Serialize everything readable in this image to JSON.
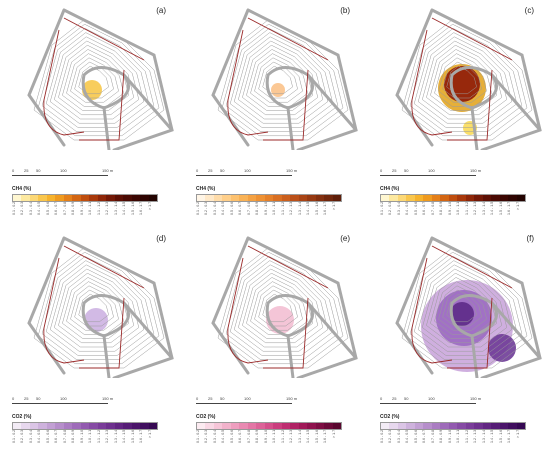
{
  "panels": [
    {
      "label": "(a)",
      "legend_title": "CH4 (%)",
      "colors": [
        "#fff7d1",
        "#fde9a0",
        "#fcd876",
        "#f9c64c",
        "#f6b22c",
        "#ef9a1e",
        "#e47f18",
        "#d36512",
        "#bf4d0e",
        "#a8380b",
        "#8e2608",
        "#731806",
        "#5c0f04",
        "#4a0a03",
        "#3b0602",
        "#2e0401",
        "#230300",
        "#1a0200"
      ],
      "blobs": [
        {
          "x": 88,
          "y": 90,
          "r": 10,
          "c": "#f7c84a"
        }
      ]
    },
    {
      "label": "(b)",
      "legend_title": "CH4 (%)",
      "colors": [
        "#fff5e6",
        "#ffe9c9",
        "#ffdca9",
        "#ffcf8a",
        "#fdc16e",
        "#f9b256",
        "#f4a142",
        "#ee9133",
        "#e58029",
        "#d96f22",
        "#cb5f1d",
        "#bb5019",
        "#a94415",
        "#963912",
        "#832f0f",
        "#70260c",
        "#5e1e0a",
        "#4d1708"
      ],
      "blobs": [
        {
          "x": 90,
          "y": 90,
          "r": 7,
          "c": "#fbc28a"
        }
      ]
    },
    {
      "label": "(c)",
      "legend_title": "CH4 (%)",
      "colors": [
        "#fff7d1",
        "#fde9a0",
        "#fcd876",
        "#f9c64c",
        "#f6b22c",
        "#ef9a1e",
        "#e47f18",
        "#d36512",
        "#bf4d0e",
        "#a8380b",
        "#8e2608",
        "#731806",
        "#5c0f04",
        "#4a0a03",
        "#3b0602",
        "#2e0401",
        "#230300",
        "#1a0200"
      ],
      "blobs": [
        {
          "x": 90,
          "y": 88,
          "r": 24,
          "c": "#e3a624"
        },
        {
          "x": 90,
          "y": 84,
          "r": 18,
          "c": "#8e1a08"
        },
        {
          "x": 98,
          "y": 128,
          "r": 7,
          "c": "#f9dc5a"
        }
      ]
    },
    {
      "label": "(d)",
      "legend_title": "CO2 (%)",
      "colors": [
        "#f3ecf6",
        "#e7d8ee",
        "#dbc5e6",
        "#ceb2dd",
        "#c2a0d4",
        "#b68ecb",
        "#aa7cc2",
        "#9e6bb9",
        "#925aaf",
        "#864ba4",
        "#7a3d99",
        "#6e318e",
        "#622682",
        "#561d76",
        "#4b156a",
        "#400e5e",
        "#350852",
        "#2b0446"
      ],
      "blobs": [
        {
          "x": 92,
          "y": 92,
          "r": 12,
          "c": "#cdb2e2"
        }
      ]
    },
    {
      "label": "(e)",
      "legend_title": "CO2 (%)",
      "colors": [
        "#fcebf1",
        "#f9d8e5",
        "#f6c5d8",
        "#f2b2cb",
        "#ee9ebf",
        "#e98ab2",
        "#e376a5",
        "#dc6398",
        "#d4508b",
        "#ca3e7e",
        "#be2e71",
        "#b02264",
        "#a01958",
        "#8e124d",
        "#7c0d42",
        "#6a0938",
        "#59062e",
        "#480425"
      ],
      "blobs": [
        {
          "x": 92,
          "y": 92,
          "r": 14,
          "c": "#f3bfd3"
        }
      ]
    },
    {
      "label": "(f)",
      "legend_title": "CO2 (%)",
      "colors": [
        "#f3ecf6",
        "#e7d8ee",
        "#dbc5e6",
        "#ceb2dd",
        "#c2a0d4",
        "#b68ecb",
        "#aa7cc2",
        "#9e6bb9",
        "#925aaf",
        "#864ba4",
        "#7a3d99",
        "#6e318e",
        "#622682",
        "#561d76",
        "#4b156a",
        "#400e5e",
        "#350852",
        "#2b0446"
      ],
      "blobs": [
        {
          "x": 95,
          "y": 98,
          "r": 46,
          "c": "#caa6dc"
        },
        {
          "x": 92,
          "y": 90,
          "r": 28,
          "c": "#9b6ac2"
        },
        {
          "x": 90,
          "y": 86,
          "r": 12,
          "c": "#5d2a87"
        },
        {
          "x": 130,
          "y": 120,
          "r": 14,
          "c": "#6e3b97"
        }
      ]
    }
  ],
  "scale_ticks": [
    "0",
    "25",
    "50",
    "100",
    "150 m"
  ],
  "legend_labels": [
    "0.1 - 0.2",
    "0.2 - 0.3",
    "0.3 - 0.4",
    "0.4 - 0.5",
    "0.5 - 0.6",
    "0.6 - 0.7",
    "0.7 - 0.8",
    "0.8 - 0.9",
    "0.9 - 1.0",
    "1.0 - 1.1",
    "1.1 - 1.2",
    "1.2 - 1.3",
    "1.3 - 1.4",
    "1.4 - 1.5",
    "1.5 - 1.6",
    "1.6 - 1.7",
    "> 1.7"
  ]
}
